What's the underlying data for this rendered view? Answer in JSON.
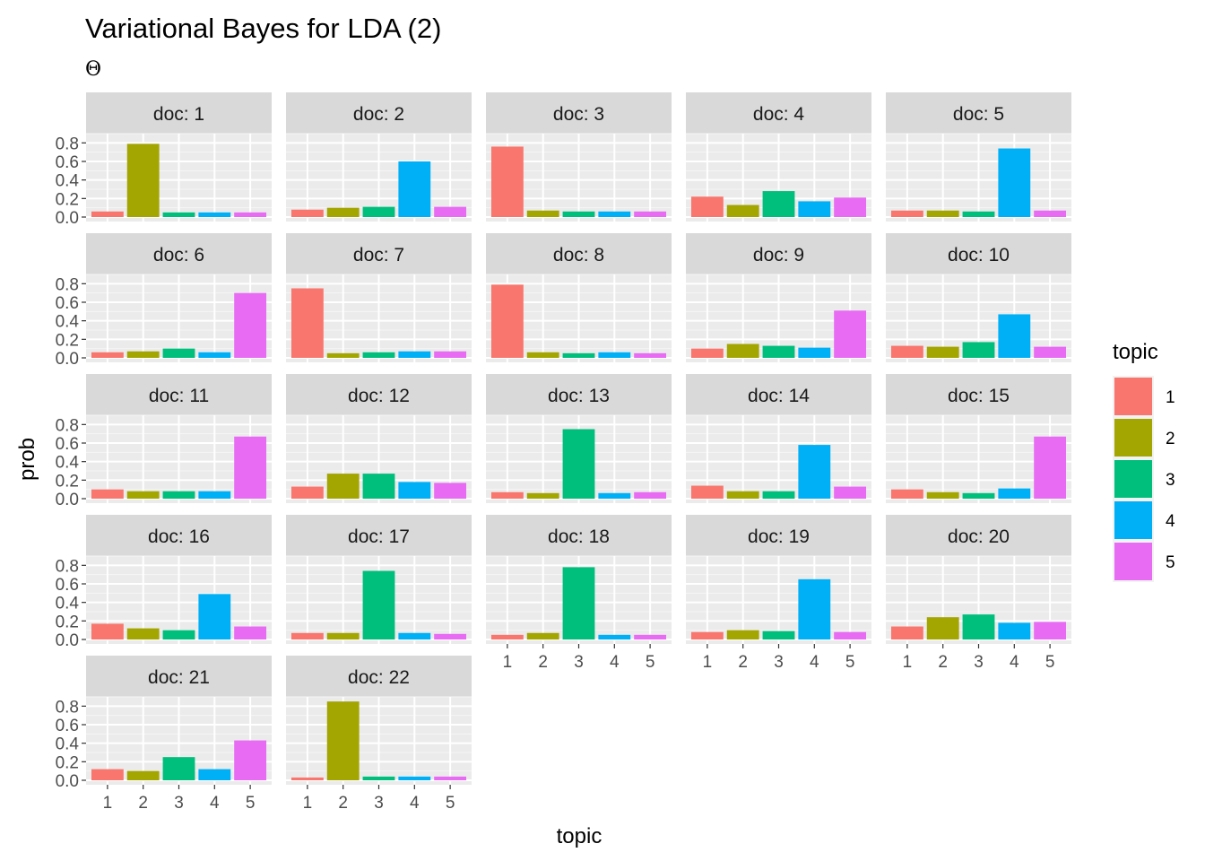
{
  "chart_data": {
    "type": "bar",
    "title": "Variational Bayes for LDA (2)",
    "subtitle": "Θ",
    "xlabel": "topic",
    "ylabel": "prob",
    "categories": [
      "1",
      "2",
      "3",
      "4",
      "5"
    ],
    "ylim": [
      0,
      0.9
    ],
    "yticks": [
      "0.0",
      "0.2",
      "0.4",
      "0.6",
      "0.8"
    ],
    "grid": true,
    "legend": {
      "title": "topic",
      "position": "right",
      "entries": [
        "1",
        "2",
        "3",
        "4",
        "5"
      ]
    },
    "colors": [
      "#F8766D",
      "#A3A500",
      "#00BF7D",
      "#00B0F6",
      "#E76BF3"
    ],
    "facet_prefix": "doc: ",
    "facets": [
      {
        "doc": "1",
        "values": [
          0.06,
          0.79,
          0.05,
          0.05,
          0.05
        ]
      },
      {
        "doc": "2",
        "values": [
          0.08,
          0.1,
          0.11,
          0.6,
          0.11
        ]
      },
      {
        "doc": "3",
        "values": [
          0.76,
          0.07,
          0.06,
          0.06,
          0.06
        ]
      },
      {
        "doc": "4",
        "values": [
          0.22,
          0.13,
          0.28,
          0.17,
          0.21
        ]
      },
      {
        "doc": "5",
        "values": [
          0.07,
          0.07,
          0.06,
          0.74,
          0.07
        ]
      },
      {
        "doc": "6",
        "values": [
          0.06,
          0.07,
          0.1,
          0.06,
          0.7
        ]
      },
      {
        "doc": "7",
        "values": [
          0.75,
          0.05,
          0.06,
          0.07,
          0.07
        ]
      },
      {
        "doc": "8",
        "values": [
          0.79,
          0.06,
          0.05,
          0.06,
          0.05
        ]
      },
      {
        "doc": "9",
        "values": [
          0.1,
          0.15,
          0.13,
          0.11,
          0.51
        ]
      },
      {
        "doc": "10",
        "values": [
          0.13,
          0.12,
          0.17,
          0.47,
          0.12
        ]
      },
      {
        "doc": "11",
        "values": [
          0.1,
          0.08,
          0.08,
          0.08,
          0.67
        ]
      },
      {
        "doc": "12",
        "values": [
          0.13,
          0.27,
          0.27,
          0.18,
          0.17
        ]
      },
      {
        "doc": "13",
        "values": [
          0.07,
          0.06,
          0.75,
          0.06,
          0.07
        ]
      },
      {
        "doc": "14",
        "values": [
          0.14,
          0.08,
          0.08,
          0.58,
          0.13
        ]
      },
      {
        "doc": "15",
        "values": [
          0.1,
          0.07,
          0.06,
          0.11,
          0.67
        ]
      },
      {
        "doc": "16",
        "values": [
          0.17,
          0.12,
          0.1,
          0.49,
          0.14
        ]
      },
      {
        "doc": "17",
        "values": [
          0.07,
          0.07,
          0.74,
          0.07,
          0.06
        ]
      },
      {
        "doc": "18",
        "values": [
          0.05,
          0.07,
          0.78,
          0.05,
          0.05
        ]
      },
      {
        "doc": "19",
        "values": [
          0.08,
          0.1,
          0.09,
          0.65,
          0.08
        ]
      },
      {
        "doc": "20",
        "values": [
          0.14,
          0.24,
          0.27,
          0.18,
          0.19
        ]
      },
      {
        "doc": "21",
        "values": [
          0.12,
          0.1,
          0.25,
          0.12,
          0.43
        ]
      },
      {
        "doc": "22",
        "values": [
          0.03,
          0.85,
          0.04,
          0.04,
          0.04
        ]
      }
    ]
  }
}
